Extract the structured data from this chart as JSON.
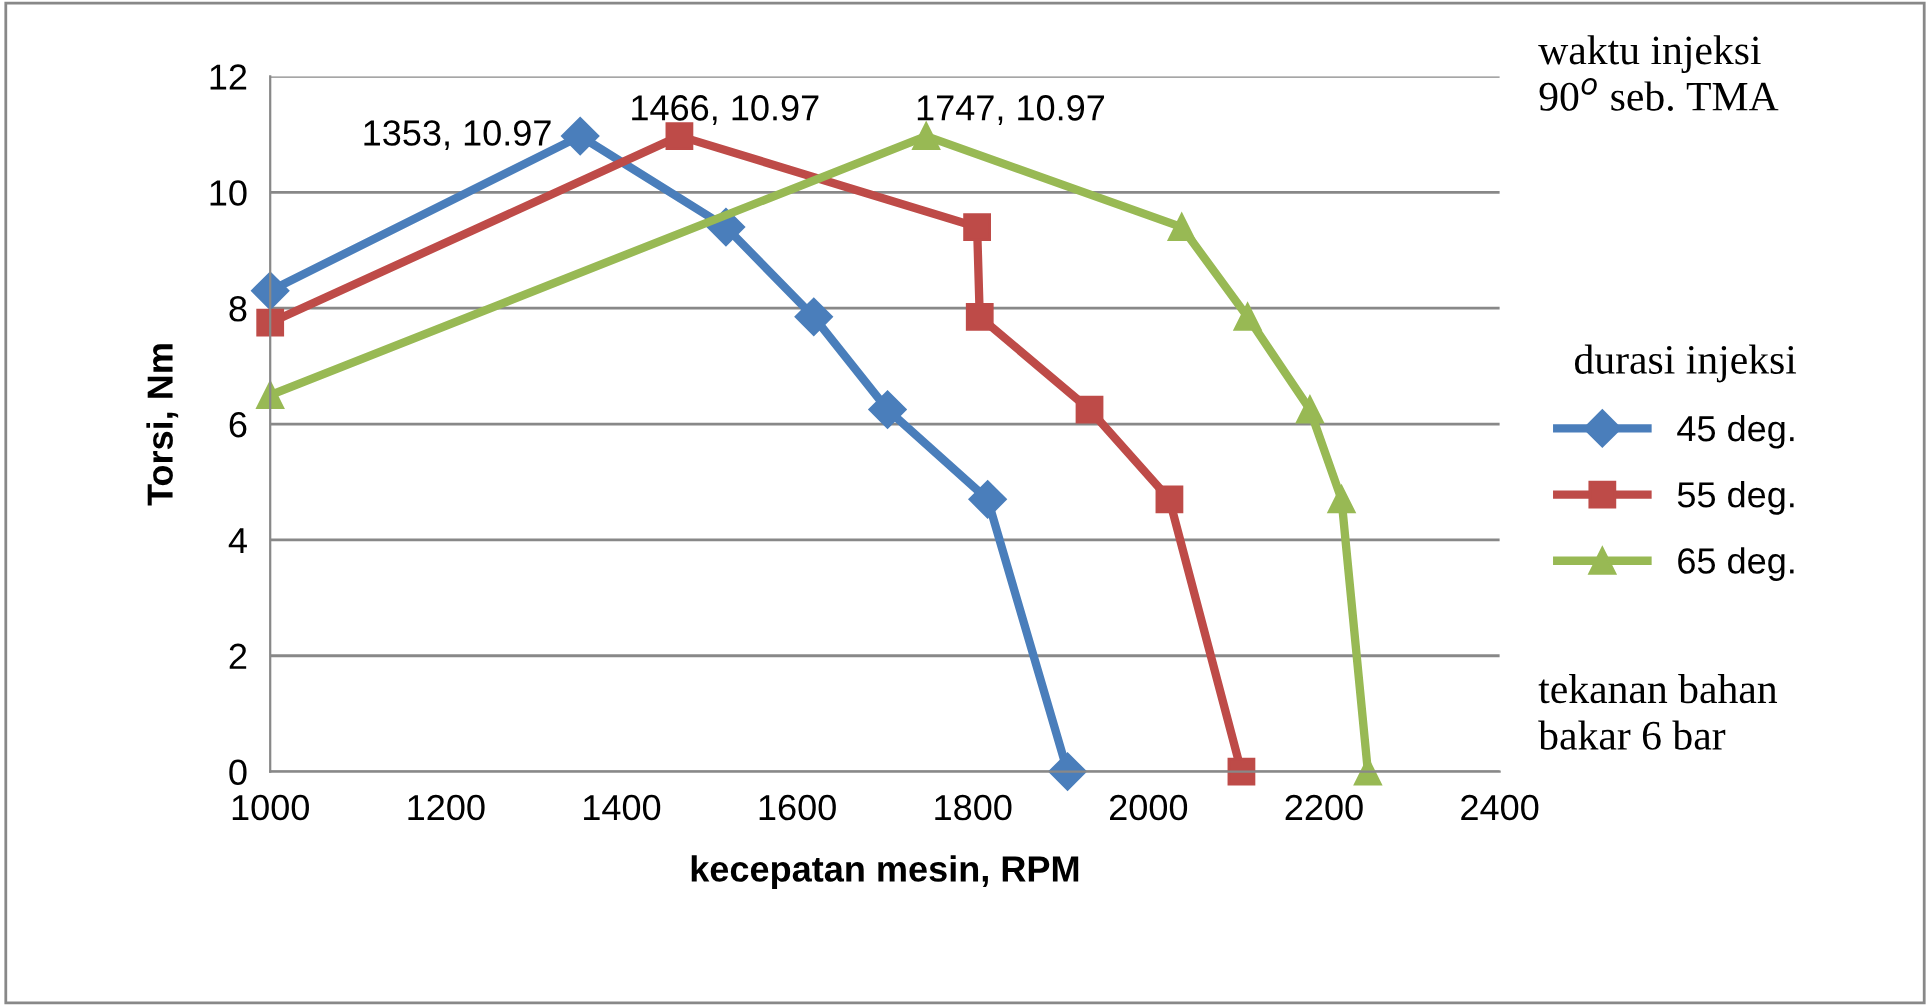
{
  "chart_data": {
    "type": "line",
    "xlabel": "kecepatan mesin, RPM",
    "ylabel": "Torsi, Nm",
    "legend_title": "durasi injeksi",
    "legend": "right",
    "grid": "y",
    "line_style": "solid",
    "xlim": [
      1000,
      2400
    ],
    "xticks": [
      1000,
      1200,
      1400,
      1600,
      1800,
      2000,
      2200,
      2400
    ],
    "ylim": [
      0,
      12
    ],
    "yticks": [
      0,
      2,
      4,
      6,
      8,
      10,
      12
    ],
    "series": [
      {
        "name": "45 deg.",
        "color": "#4a7ebb",
        "marker": "diamond",
        "x": [
          1000,
          1353,
          1519,
          1619,
          1703,
          1817,
          1908
        ],
        "values": [
          8.3,
          10.97,
          9.4,
          7.85,
          6.25,
          4.7,
          0
        ]
      },
      {
        "name": "55 deg.",
        "color": "#be4b48",
        "marker": "square",
        "x": [
          1000,
          1466,
          1805,
          1808,
          1933,
          2024,
          2106
        ],
        "values": [
          7.75,
          10.97,
          9.4,
          7.85,
          6.25,
          4.7,
          0
        ]
      },
      {
        "name": "65 deg.",
        "color": "#98b954",
        "marker": "triangle",
        "x": [
          1000,
          1747,
          2038,
          2113,
          2184,
          2220,
          2250
        ],
        "values": [
          6.5,
          10.97,
          9.4,
          7.85,
          6.25,
          4.7,
          0
        ]
      }
    ],
    "annotations": [
      {
        "text": "1353, 10.97",
        "x": 1353,
        "y": 10.97
      },
      {
        "text": "1466, 10.97",
        "x": 1466,
        "y": 10.97
      },
      {
        "text": "1747, 10.97",
        "x": 1747,
        "y": 10.97
      },
      "waktu injeksi\n90$^{o}$ seb. TMA",
      "tekanan bahan\nbakar 6 bar"
    ]
  }
}
